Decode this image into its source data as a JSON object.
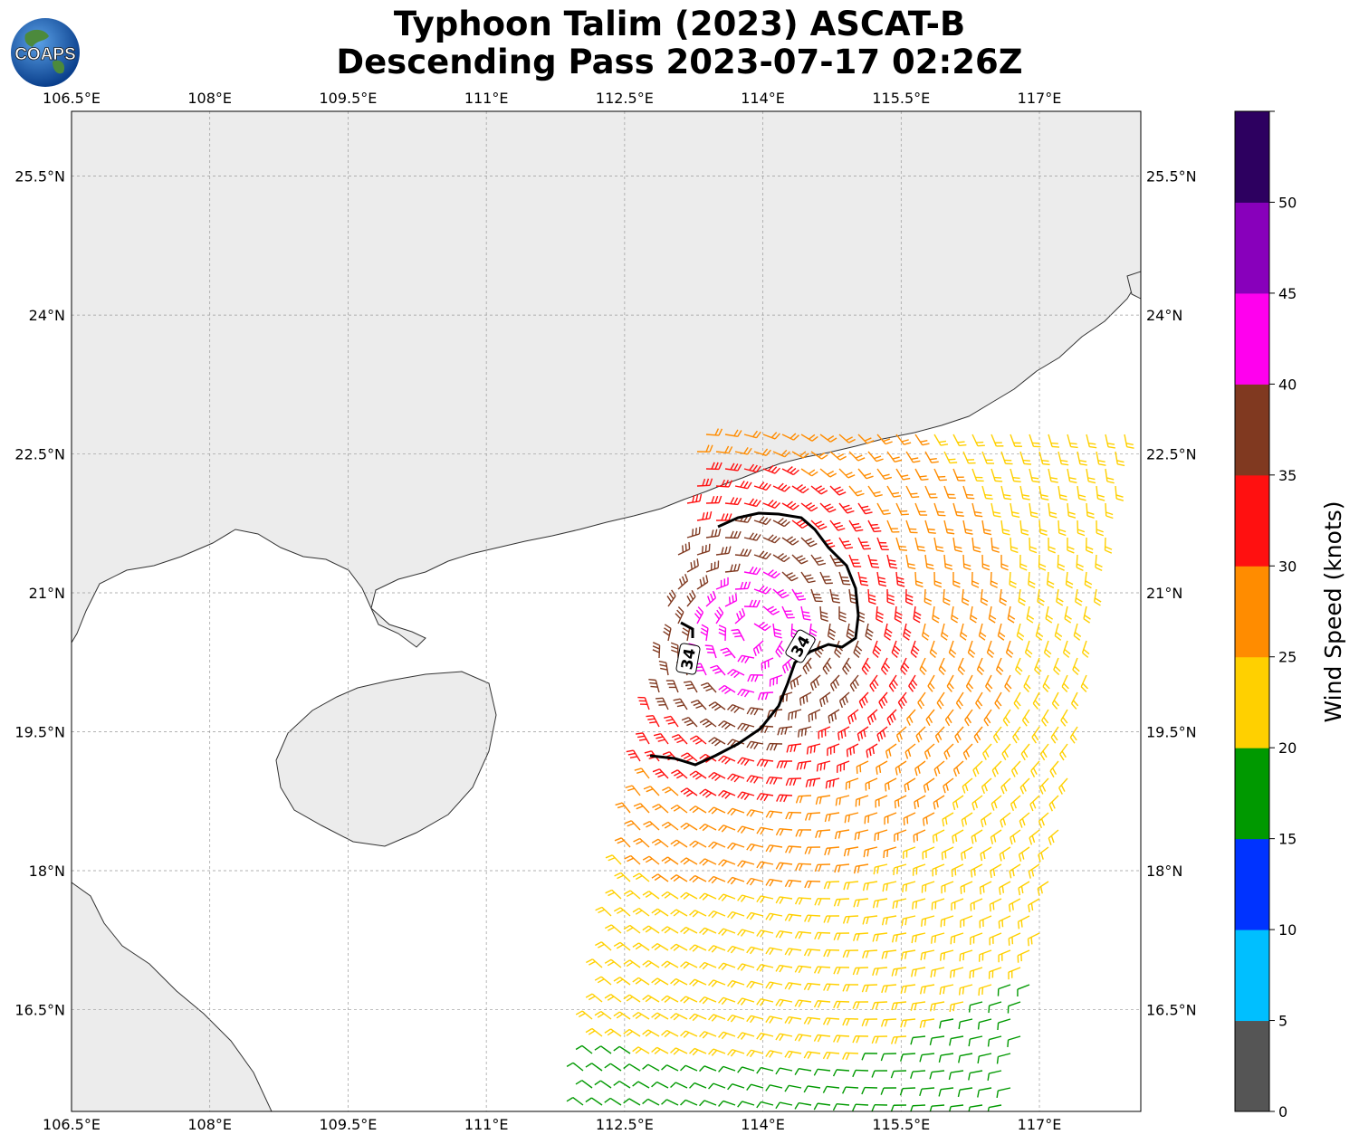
{
  "title": {
    "line1": "Typhoon Talim (2023) ASCAT-B",
    "line2": "Descending Pass 2023-07-17 02:26Z"
  },
  "logo": {
    "text": "COAPS",
    "icon": "globe-icon"
  },
  "map": {
    "lon_range": [
      106.5,
      118.1
    ],
    "lat_range": [
      15.4,
      26.2
    ],
    "lon_ticks": [
      "106.5°E",
      "108°E",
      "109.5°E",
      "111°E",
      "112.5°E",
      "114°E",
      "115.5°E",
      "117°E"
    ],
    "lat_ticks": [
      "25.5°N",
      "24°N",
      "22.5°N",
      "21°N",
      "19.5°N",
      "18°N",
      "16.5°N"
    ],
    "grid": true,
    "contour_label": "34",
    "land_color": "#ececec",
    "ocean_color": "#ffffff"
  },
  "colorbar": {
    "label": "Wind Speed (knots)",
    "ticks": [
      "0",
      "5",
      "10",
      "15",
      "20",
      "25",
      "30",
      "35",
      "40",
      "45",
      "50"
    ],
    "colors": [
      "#555555",
      "#00bfff",
      "#0033ff",
      "#009900",
      "#ffd000",
      "#ff8c00",
      "#ff1010",
      "#803920",
      "#ff00ee",
      "#8800bb",
      "#2d0060"
    ]
  }
}
